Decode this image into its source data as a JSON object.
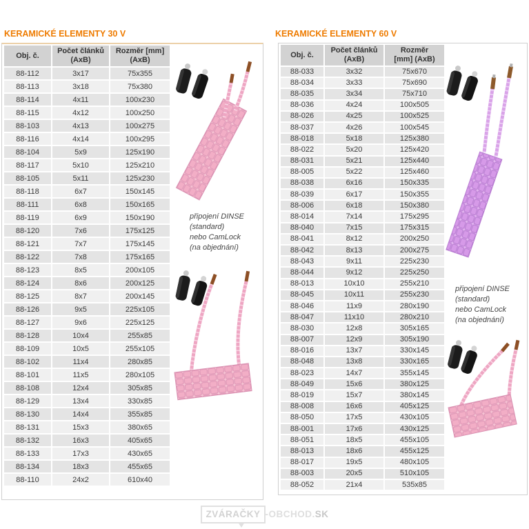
{
  "headings": {
    "left": "KERAMICKÉ ELEMENTY 30 V",
    "right": "KERAMICKÉ ELEMENTY 60 V"
  },
  "tables": {
    "left": {
      "columns": [
        {
          "l1": "Obj. č.",
          "l2": ""
        },
        {
          "l1": "Počet článků",
          "l2": "(AxB)"
        },
        {
          "l1": "Rozměr [mm]",
          "l2": "(AxB)"
        }
      ],
      "rows": [
        [
          "88-112",
          "3x17",
          "75x355"
        ],
        [
          "88-113",
          "3x18",
          "75x380"
        ],
        [
          "88-114",
          "4x11",
          "100x230"
        ],
        [
          "88-115",
          "4x12",
          "100x250"
        ],
        [
          "88-103",
          "4x13",
          "100x275"
        ],
        [
          "88-116",
          "4x14",
          "100x295"
        ],
        [
          "88-104",
          "5x9",
          "125x190"
        ],
        [
          "88-117",
          "5x10",
          "125x210"
        ],
        [
          "88-105",
          "5x11",
          "125x230"
        ],
        [
          "88-118",
          "6x7",
          "150x145"
        ],
        [
          "88-111",
          "6x8",
          "150x165"
        ],
        [
          "88-119",
          "6x9",
          "150x190"
        ],
        [
          "88-120",
          "7x6",
          "175x125"
        ],
        [
          "88-121",
          "7x7",
          "175x145"
        ],
        [
          "88-122",
          "7x8",
          "175x165"
        ],
        [
          "88-123",
          "8x5",
          "200x105"
        ],
        [
          "88-124",
          "8x6",
          "200x125"
        ],
        [
          "88-125",
          "8x7",
          "200x145"
        ],
        [
          "88-126",
          "9x5",
          "225x105"
        ],
        [
          "88-127",
          "9x6",
          "225x125"
        ],
        [
          "88-128",
          "10x4",
          "255x85"
        ],
        [
          "88-109",
          "10x5",
          "255x105"
        ],
        [
          "88-102",
          "11x4",
          "280x85"
        ],
        [
          "88-101",
          "11x5",
          "280x105"
        ],
        [
          "88-108",
          "12x4",
          "305x85"
        ],
        [
          "88-129",
          "13x4",
          "330x85"
        ],
        [
          "88-130",
          "14x4",
          "355x85"
        ],
        [
          "88-131",
          "15x3",
          "380x65"
        ],
        [
          "88-132",
          "16x3",
          "405x65"
        ],
        [
          "88-133",
          "17x3",
          "430x65"
        ],
        [
          "88-134",
          "18x3",
          "455x65"
        ],
        [
          "88-110",
          "24x2",
          "610x40"
        ]
      ]
    },
    "right": {
      "columns": [
        {
          "l1": "Obj. č.",
          "l2": ""
        },
        {
          "l1": "Počet článků",
          "l2": "(AxB)"
        },
        {
          "l1": "Rozměr",
          "l2": "[mm] (AxB)"
        }
      ],
      "rows": [
        [
          "88-033",
          "3x32",
          "75x670"
        ],
        [
          "88-034",
          "3x33",
          "75x690"
        ],
        [
          "88-035",
          "3x34",
          "75x710"
        ],
        [
          "88-036",
          "4x24",
          "100x505"
        ],
        [
          "88-026",
          "4x25",
          "100x525"
        ],
        [
          "88-037",
          "4x26",
          "100x545"
        ],
        [
          "88-018",
          "5x18",
          "125x380"
        ],
        [
          "88-022",
          "5x20",
          "125x420"
        ],
        [
          "88-031",
          "5x21",
          "125x440"
        ],
        [
          "88-005",
          "5x22",
          "125x460"
        ],
        [
          "88-038",
          "6x16",
          "150x335"
        ],
        [
          "88-039",
          "6x17",
          "150x355"
        ],
        [
          "88-006",
          "6x18",
          "150x380"
        ],
        [
          "88-014",
          "7x14",
          "175x295"
        ],
        [
          "88-040",
          "7x15",
          "175x315"
        ],
        [
          "88-041",
          "8x12",
          "200x250"
        ],
        [
          "88-042",
          "8x13",
          "200x275"
        ],
        [
          "88-043",
          "9x11",
          "225x230"
        ],
        [
          "88-044",
          "9x12",
          "225x250"
        ],
        [
          "88-013",
          "10x10",
          "255x210"
        ],
        [
          "88-045",
          "10x11",
          "255x230"
        ],
        [
          "88-046",
          "11x9",
          "280x190"
        ],
        [
          "88-047",
          "11x10",
          "280x210"
        ],
        [
          "88-030",
          "12x8",
          "305x165"
        ],
        [
          "88-007",
          "12x9",
          "305x190"
        ],
        [
          "88-016",
          "13x7",
          "330x145"
        ],
        [
          "88-048",
          "13x8",
          "330x165"
        ],
        [
          "88-023",
          "14x7",
          "355x145"
        ],
        [
          "88-049",
          "15x6",
          "380x125"
        ],
        [
          "88-019",
          "15x7",
          "380x145"
        ],
        [
          "88-008",
          "16x6",
          "405x125"
        ],
        [
          "88-050",
          "17x5",
          "430x105"
        ],
        [
          "88-001",
          "17x6",
          "430x125"
        ],
        [
          "88-051",
          "18x5",
          "455x105"
        ],
        [
          "88-013",
          "18x6",
          "455x125"
        ],
        [
          "88-017",
          "19x5",
          "480x105"
        ],
        [
          "88-003",
          "20x5",
          "510x105"
        ],
        [
          "88-052",
          "21x4",
          "535x85"
        ]
      ]
    }
  },
  "notes": {
    "left_lines": [
      "připojení DINSE",
      "(standard)",
      "nebo CamLock",
      "(na objednání)"
    ],
    "right_lines": [
      "připojení DINSE",
      "(standard)",
      "nebo CamLock",
      "(na objednání)"
    ]
  },
  "images": {
    "left_top": "ceramic-pad-heater-30v-narrow",
    "left_bottom": "ceramic-pad-heater-30v-wide",
    "right_top": "ceramic-pad-heater-60v-narrow",
    "right_bottom": "ceramic-pad-heater-60v-wide"
  },
  "watermark": {
    "box": "ZVÁRAČKY",
    "rest": "-OBCHOD.",
    "suffix": "SK"
  },
  "colors": {
    "accent_orange": "#ee7b00",
    "pad_pink": "#f2aec6",
    "pad_purple": "#d092e6",
    "table_header_gray": "#d2d2d2"
  }
}
